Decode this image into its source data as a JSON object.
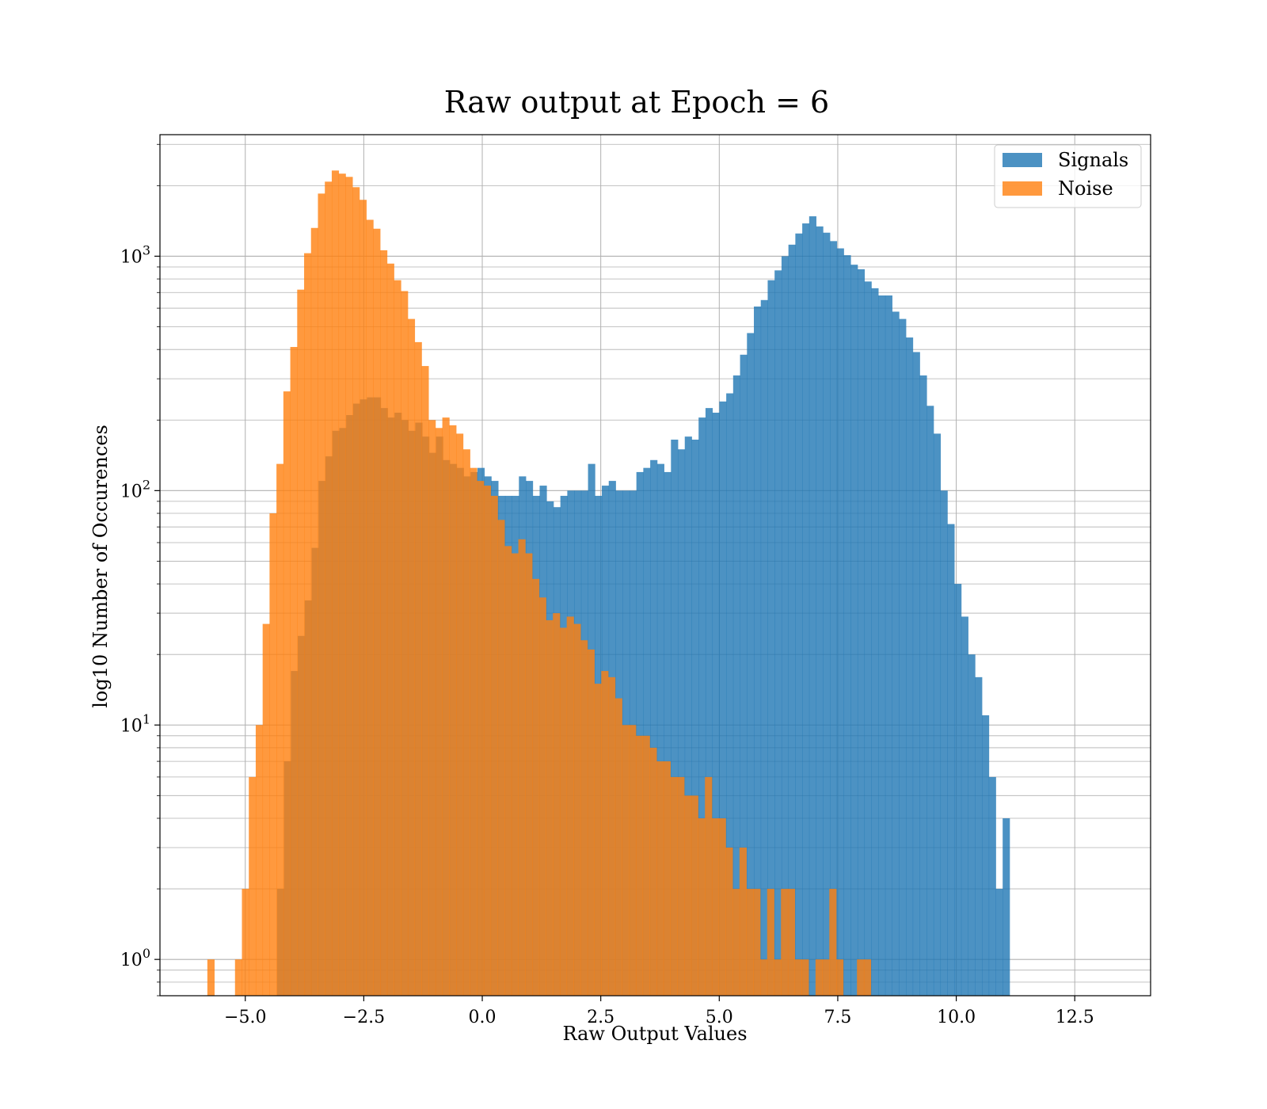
{
  "chart_data": {
    "type": "bar",
    "title": "Raw output at Epoch = 6",
    "xlabel": "Raw Output Values",
    "ylabel": "log10 Number of Occurences",
    "yscale": "log",
    "grid": "both (major and minor)",
    "xlim": [
      -6.8,
      14.1
    ],
    "ylim": [
      0.7,
      3300
    ],
    "xticks": [
      -5.0,
      -2.5,
      0.0,
      2.5,
      5.0,
      7.5,
      10.0,
      12.5
    ],
    "xtick_labels": [
      "−5.0",
      "−2.5",
      "0.0",
      "2.5",
      "5.0",
      "7.5",
      "10.0",
      "12.5"
    ],
    "yticks": [
      1,
      10,
      100,
      1000
    ],
    "ytick_labels": [
      {
        "base": "10",
        "exp": "0"
      },
      {
        "base": "10",
        "exp": "1"
      },
      {
        "base": "10",
        "exp": "2"
      },
      {
        "base": "10",
        "exp": "3"
      }
    ],
    "legend": {
      "position": "top-right",
      "entries": [
        "Signals",
        "Noise"
      ]
    },
    "colors": {
      "Signals": "#1f77b4",
      "Noise": "#ff7f0e"
    },
    "alpha": 0.8,
    "series": [
      {
        "name": "Signals",
        "bin_start": -4.33,
        "bin_width": 0.1458,
        "values": [
          2,
          7,
          17,
          24,
          34,
          57,
          110,
          140,
          180,
          185,
          210,
          235,
          245,
          250,
          250,
          225,
          205,
          215,
          200,
          180,
          195,
          170,
          145,
          170,
          135,
          130,
          125,
          115,
          120,
          125,
          115,
          110,
          95,
          95,
          95,
          115,
          110,
          95,
          105,
          90,
          85,
          95,
          100,
          100,
          100,
          130,
          95,
          105,
          110,
          100,
          100,
          100,
          120,
          125,
          135,
          130,
          120,
          165,
          150,
          170,
          165,
          205,
          225,
          215,
          240,
          260,
          310,
          380,
          470,
          610,
          650,
          790,
          870,
          1000,
          1120,
          1250,
          1380,
          1480,
          1340,
          1260,
          1160,
          1080,
          1010,
          920,
          880,
          780,
          730,
          680,
          680,
          580,
          540,
          450,
          390,
          310,
          230,
          175,
          100,
          72,
          40,
          29,
          20,
          16,
          11,
          6,
          2,
          4
        ]
      },
      {
        "name": "Noise",
        "bin_start": -5.8,
        "bin_width": 0.1458,
        "values": [
          1,
          0,
          0,
          0,
          1,
          2,
          6,
          10,
          27,
          80,
          130,
          265,
          410,
          720,
          1030,
          1320,
          1850,
          2080,
          2320,
          2250,
          2180,
          1970,
          1740,
          1430,
          1310,
          1060,
          930,
          790,
          710,
          540,
          430,
          340,
          200,
          185,
          205,
          190,
          175,
          150,
          125,
          110,
          105,
          95,
          75,
          58,
          54,
          62,
          54,
          42,
          35,
          28,
          30,
          26,
          29,
          27,
          23,
          21,
          15,
          17,
          16,
          13,
          10,
          10,
          9,
          9,
          8,
          7,
          7,
          6,
          6,
          5,
          5,
          4,
          6,
          4,
          4,
          3,
          2,
          3,
          2,
          2,
          1,
          2,
          1,
          2,
          2,
          1,
          1,
          0,
          1,
          1,
          2,
          1,
          0,
          0,
          1,
          1,
          0,
          0,
          0,
          0
        ]
      }
    ]
  }
}
